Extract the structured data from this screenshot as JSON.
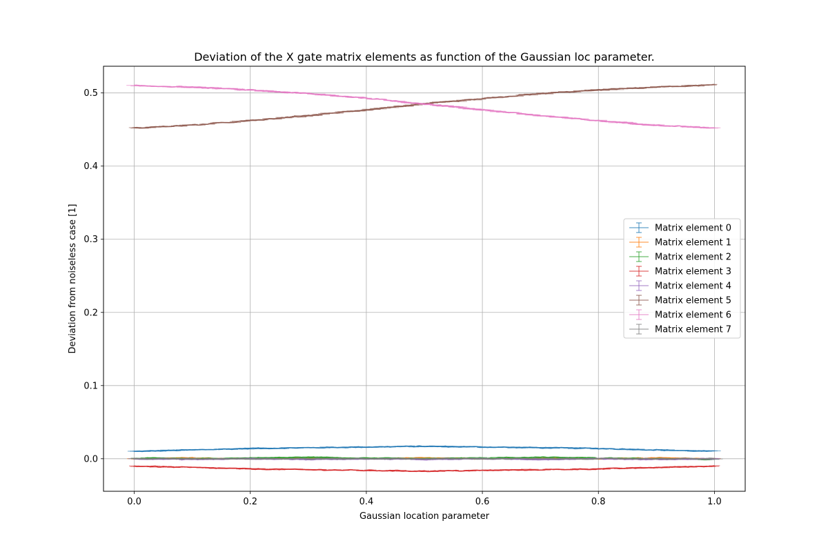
{
  "chart_data": {
    "type": "line",
    "title": "Deviation of the X gate matrix elements as function of the Gaussian loc parameter.",
    "xlabel": "Gaussian location parameter",
    "ylabel": "Deviation from noiseless case [1]",
    "xlim": [
      -0.053,
      1.053
    ],
    "ylim": [
      -0.0445,
      0.5365
    ],
    "xticks": [
      0.0,
      0.2,
      0.4,
      0.6,
      0.8,
      1.0
    ],
    "xtick_labels": [
      "0.0",
      "0.2",
      "0.4",
      "0.6",
      "0.8",
      "1.0"
    ],
    "yticks": [
      0.0,
      0.1,
      0.2,
      0.3,
      0.4,
      0.5
    ],
    "ytick_labels": [
      "0.0",
      "0.1",
      "0.2",
      "0.3",
      "0.4",
      "0.5"
    ],
    "grid": true,
    "legend_position": "center-right",
    "error_bars": true,
    "x": [
      0.0,
      0.1,
      0.2,
      0.3,
      0.4,
      0.5,
      0.6,
      0.7,
      0.8,
      0.9,
      1.0
    ],
    "series": [
      {
        "name": "Matrix element 0",
        "color": "#1f77b4",
        "values": [
          0.01,
          0.012,
          0.014,
          0.015,
          0.016,
          0.017,
          0.016,
          0.015,
          0.014,
          0.012,
          0.01
        ]
      },
      {
        "name": "Matrix element 1",
        "color": "#ff7f0e",
        "values": [
          0.0,
          0.001,
          0.0,
          0.001,
          0.0,
          0.001,
          0.0,
          0.001,
          0.0,
          0.001,
          0.0
        ]
      },
      {
        "name": "Matrix element 2",
        "color": "#2ca02c",
        "values": [
          0.001,
          0.0,
          0.001,
          0.002,
          0.001,
          0.0,
          0.001,
          0.002,
          0.001,
          0.0,
          -0.001
        ]
      },
      {
        "name": "Matrix element 3",
        "color": "#d62728",
        "values": [
          -0.01,
          -0.012,
          -0.014,
          -0.015,
          -0.016,
          -0.017,
          -0.016,
          -0.015,
          -0.014,
          -0.012,
          -0.01
        ]
      },
      {
        "name": "Matrix element 4",
        "color": "#9467bd",
        "values": [
          0.0,
          -0.001,
          0.0,
          -0.001,
          0.0,
          -0.001,
          0.0,
          -0.001,
          0.0,
          -0.001,
          0.0
        ]
      },
      {
        "name": "Matrix element 5",
        "color": "#8c564b",
        "values": [
          0.452,
          0.456,
          0.462,
          0.469,
          0.477,
          0.485,
          0.492,
          0.499,
          0.504,
          0.508,
          0.511
        ]
      },
      {
        "name": "Matrix element 6",
        "color": "#e377c2",
        "values": [
          0.51,
          0.508,
          0.504,
          0.499,
          0.493,
          0.485,
          0.477,
          0.469,
          0.462,
          0.456,
          0.452
        ]
      },
      {
        "name": "Matrix element 7",
        "color": "#7f7f7f",
        "values": [
          0.0,
          0.0,
          0.0,
          0.0,
          0.0,
          0.0,
          0.0,
          0.0,
          0.0,
          0.0,
          0.0
        ]
      }
    ]
  }
}
